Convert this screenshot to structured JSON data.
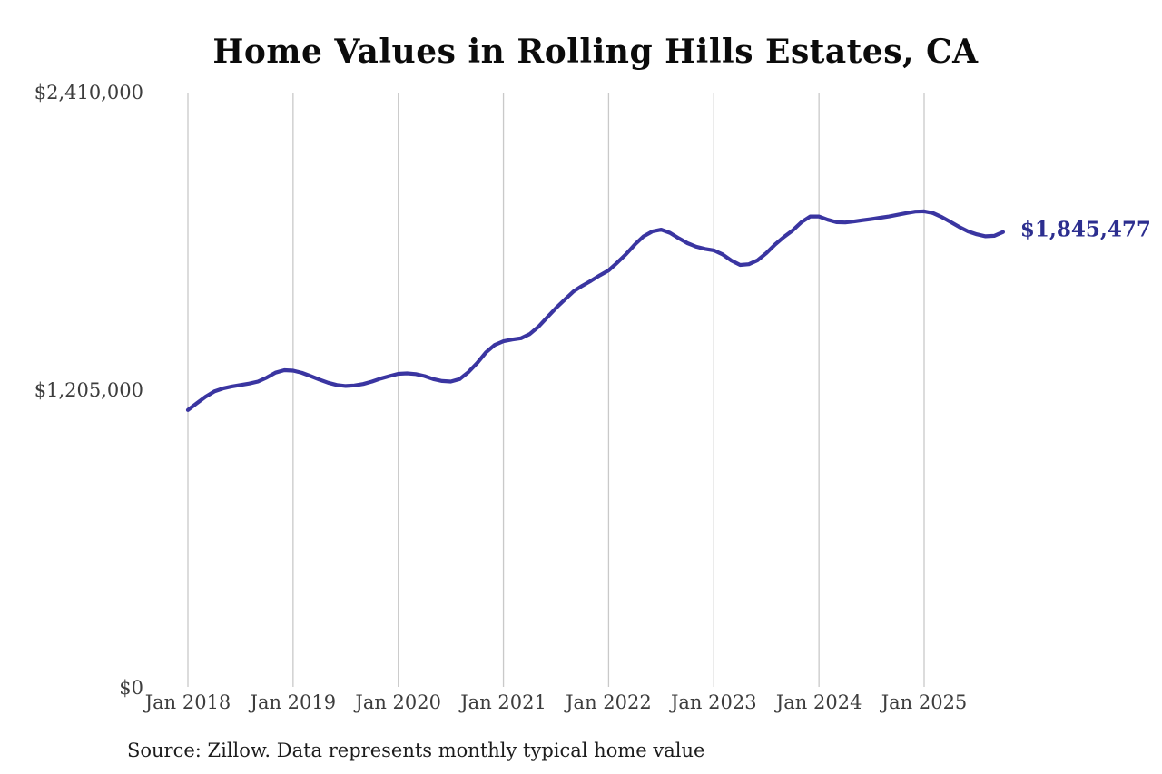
{
  "title": "Home Values in Rolling Hills Estates, CA",
  "source_note": "Source: Zillow. Data represents monthly typical home value",
  "colors": {
    "line": "#3A35A1",
    "grid": "#C9C9C9",
    "axis_text": "#3D3D3D",
    "title_text": "#0B0B0B",
    "end_label_text": "#2C2E8F",
    "source_text": "#1C1C1C",
    "background": "#FFFFFF"
  },
  "chart_data": {
    "type": "line",
    "title": "Home Values in Rolling Hills Estates, CA",
    "xlabel": "",
    "ylabel": "",
    "ylim": [
      0,
      2410000
    ],
    "grid": "vertical gridlines at each January tick, no horizontal gridlines, no axis lines",
    "legend": "none",
    "x_tick_labels": [
      "Jan 2018",
      "Jan 2019",
      "Jan 2020",
      "Jan 2021",
      "Jan 2022",
      "Jan 2023",
      "Jan 2024",
      "Jan 2025"
    ],
    "y_ticks": [
      {
        "label": "$0",
        "value": 0
      },
      {
        "label": "$1,205,000",
        "value": 1205000
      },
      {
        "label": "$2,410,000",
        "value": 2410000
      }
    ],
    "end_value_label": "$1,845,477",
    "series": [
      {
        "name": "Monthly typical home value",
        "frequency": "monthly",
        "months": [
          "2018-01",
          "2018-02",
          "2018-03",
          "2018-04",
          "2018-05",
          "2018-06",
          "2018-07",
          "2018-08",
          "2018-09",
          "2018-10",
          "2018-11",
          "2018-12",
          "2019-01",
          "2019-02",
          "2019-03",
          "2019-04",
          "2019-05",
          "2019-06",
          "2019-07",
          "2019-08",
          "2019-09",
          "2019-10",
          "2019-11",
          "2019-12",
          "2020-01",
          "2020-02",
          "2020-03",
          "2020-04",
          "2020-05",
          "2020-06",
          "2020-07",
          "2020-08",
          "2020-09",
          "2020-10",
          "2020-11",
          "2020-12",
          "2021-01",
          "2021-02",
          "2021-03",
          "2021-04",
          "2021-05",
          "2021-06",
          "2021-07",
          "2021-08",
          "2021-09",
          "2021-10",
          "2021-11",
          "2021-12",
          "2022-01",
          "2022-02",
          "2022-03",
          "2022-04",
          "2022-05",
          "2022-06",
          "2022-07",
          "2022-08",
          "2022-09",
          "2022-10",
          "2022-11",
          "2022-12",
          "2023-01",
          "2023-02",
          "2023-03",
          "2023-04",
          "2023-05",
          "2023-06",
          "2023-07",
          "2023-08",
          "2023-09",
          "2023-10",
          "2023-11",
          "2023-12",
          "2024-01",
          "2024-02",
          "2024-03",
          "2024-04",
          "2024-05",
          "2024-06",
          "2024-07",
          "2024-08",
          "2024-09",
          "2024-10",
          "2024-11",
          "2024-12",
          "2025-01",
          "2025-02",
          "2025-03",
          "2025-04",
          "2025-05",
          "2025-06",
          "2025-07",
          "2025-08",
          "2025-09",
          "2025-10"
        ],
        "values": [
          1125000,
          1152000,
          1178000,
          1200000,
          1212000,
          1220000,
          1226000,
          1232000,
          1240000,
          1256000,
          1276000,
          1286000,
          1284000,
          1275000,
          1262000,
          1248000,
          1235000,
          1226000,
          1222000,
          1224000,
          1230000,
          1240000,
          1252000,
          1262000,
          1271000,
          1273000,
          1270000,
          1262000,
          1250000,
          1242000,
          1240000,
          1250000,
          1278000,
          1315000,
          1358000,
          1388000,
          1403000,
          1410000,
          1415000,
          1432000,
          1462000,
          1500000,
          1538000,
          1572000,
          1605000,
          1628000,
          1648000,
          1670000,
          1690000,
          1722000,
          1756000,
          1795000,
          1828000,
          1848000,
          1855000,
          1842000,
          1820000,
          1800000,
          1786000,
          1777000,
          1771000,
          1755000,
          1730000,
          1712000,
          1715000,
          1731000,
          1760000,
          1795000,
          1825000,
          1852000,
          1885000,
          1908000,
          1908000,
          1895000,
          1885000,
          1884000,
          1888000,
          1893000,
          1898000,
          1903000,
          1908000,
          1915000,
          1922000,
          1928000,
          1929000,
          1922000,
          1906000,
          1886000,
          1866000,
          1848000,
          1836000,
          1828000,
          1830000,
          1845477
        ]
      }
    ]
  }
}
